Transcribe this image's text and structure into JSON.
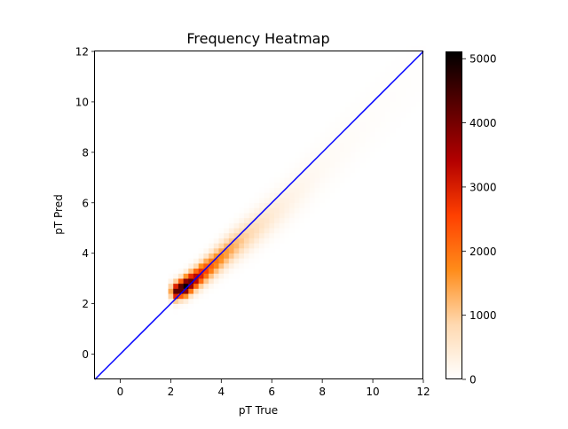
{
  "chart_data": {
    "type": "heatmap",
    "title": "Frequency Heatmap",
    "xlabel": "pT True",
    "ylabel": "pT Pred",
    "xlim": [
      -1,
      12
    ],
    "ylim": [
      -1,
      12
    ],
    "xticks": [
      0,
      2,
      4,
      6,
      8,
      10,
      12
    ],
    "yticks": [
      0,
      2,
      4,
      6,
      8,
      10,
      12
    ],
    "bin_width": 0.2,
    "colorbar": {
      "range": [
        0,
        5100
      ],
      "ticks": [
        0,
        1000,
        2000,
        3000,
        4000,
        5000
      ],
      "colormap": "gist_heat_r",
      "stops": [
        "#ffffff",
        "#ffd9b0",
        "#ff8c1a",
        "#ff4000",
        "#b30000",
        "#5a0000",
        "#000000"
      ]
    },
    "diagonal_line": {
      "from": [
        -1,
        -1
      ],
      "to": [
        12,
        12
      ],
      "color": "#0000ff"
    },
    "grid": false,
    "legend": "none",
    "distribution": {
      "ridge_points": [
        {
          "x": 2.2,
          "y": 2.5,
          "peak_count": 4200
        },
        {
          "x": 2.6,
          "y": 2.7,
          "peak_count": 5000
        },
        {
          "x": 3.0,
          "y": 3.0,
          "peak_count": 3500
        },
        {
          "x": 3.6,
          "y": 3.5,
          "peak_count": 2200
        },
        {
          "x": 4.4,
          "y": 4.2,
          "peak_count": 1400
        },
        {
          "x": 5.4,
          "y": 5.0,
          "peak_count": 700
        },
        {
          "x": 6.6,
          "y": 6.0,
          "peak_count": 300
        },
        {
          "x": 8.0,
          "y": 7.4,
          "peak_count": 120
        },
        {
          "x": 10.0,
          "y": 9.4,
          "peak_count": 50
        }
      ]
    }
  }
}
